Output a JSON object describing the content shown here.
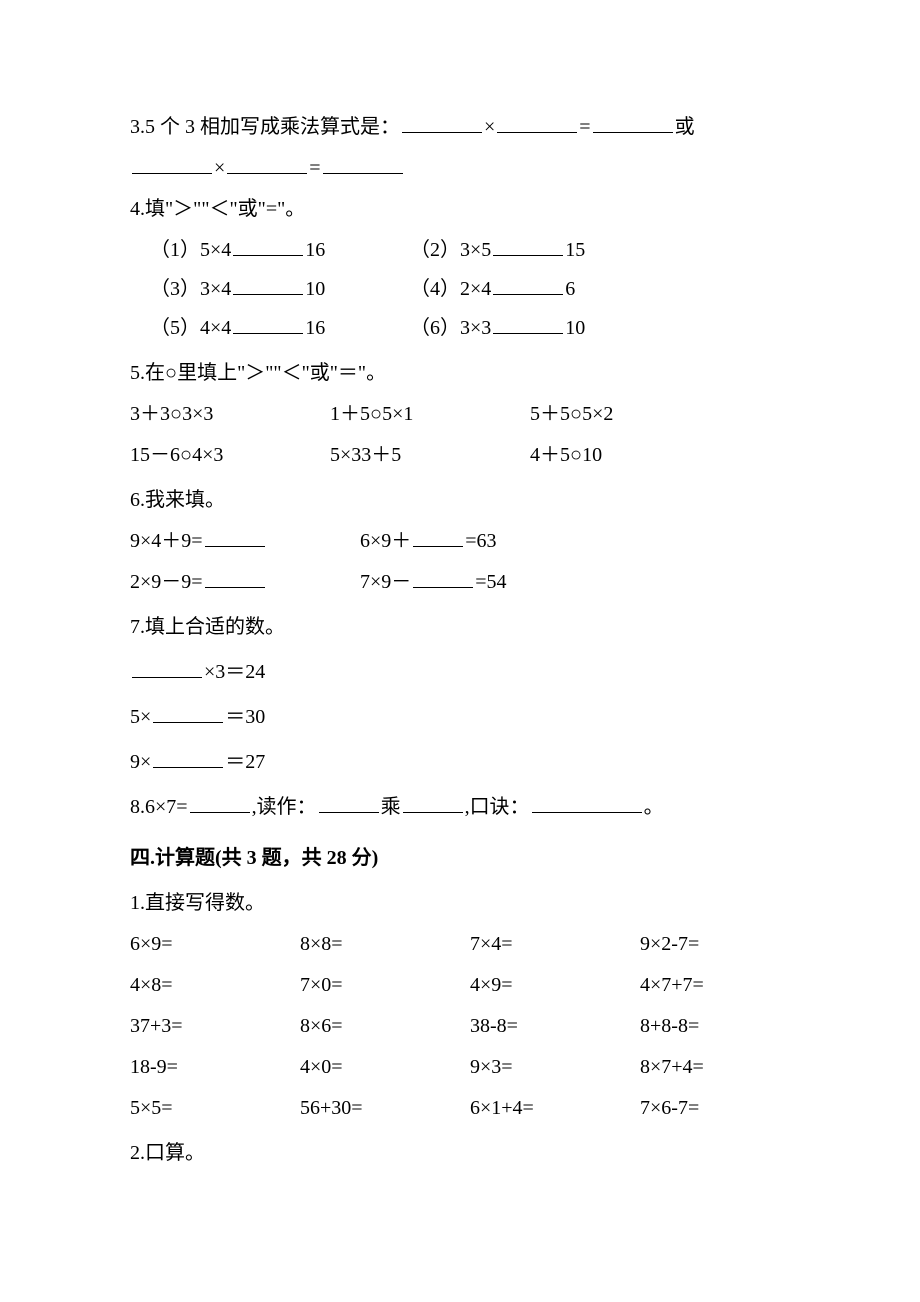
{
  "q3": {
    "prefix": "3.5 个 3 相加写成乘法算式是：",
    "mid1": "×",
    "mid2": "=",
    "tail": "或",
    "line2_mid1": "×",
    "line2_mid2": "="
  },
  "q4": {
    "title": "4.填\"＞\"\"＜\"或\"=\"。",
    "items": [
      {
        "label": "（1）5×4",
        "cmp_to": "16"
      },
      {
        "label": "（2）3×5",
        "cmp_to": "15"
      },
      {
        "label": "（3）3×4",
        "cmp_to": "10"
      },
      {
        "label": "（4）2×4",
        "cmp_to": "6"
      },
      {
        "label": "（5）4×4",
        "cmp_to": "16"
      },
      {
        "label": "（6）3×3",
        "cmp_to": "10"
      }
    ]
  },
  "q5": {
    "title": "5.在○里填上\"＞\"\"＜\"或\"＝\"。",
    "row1": [
      "3＋3○3×3",
      "1＋5○5×1",
      "5＋5○5×2"
    ],
    "row2": [
      "15－6○4×3",
      "5×33＋5",
      "4＋5○10"
    ]
  },
  "q6": {
    "title": "6.我来填。",
    "r1a": "9×4＋9=",
    "r1a_tail": "",
    "r1b": "6×9＋",
    "r1b_tail": "=63",
    "r2a": "2×9－9=",
    "r2a_tail": "",
    "r2b": "7×9－",
    "r2b_tail": "=54"
  },
  "q7": {
    "title": "7.填上合适的数。",
    "lines": [
      {
        "pre": "",
        "mid": "×3＝24"
      },
      {
        "pre": "5×",
        "mid": "＝30"
      },
      {
        "pre": "9×",
        "mid": "＝27"
      }
    ]
  },
  "q8": {
    "pre": "8.6×7=",
    "read_label": ",读作：",
    "times": "乘",
    "kj_label": ",口诀：",
    "end": "。"
  },
  "section4": {
    "title": "四.计算题(共 3 题，共 28 分)",
    "q1_title": "1.直接写得数。",
    "grid": [
      [
        "6×9=",
        "8×8=",
        "7×4=",
        "9×2-7="
      ],
      [
        "4×8=",
        "7×0=",
        "4×9=",
        "4×7+7="
      ],
      [
        "37+3=",
        "8×6=",
        "38-8=",
        "8+8-8="
      ],
      [
        "18-9=",
        "4×0=",
        "9×3=",
        "8×7+4="
      ],
      [
        "5×5=",
        "56+30=",
        "6×1+4=",
        "7×6-7="
      ]
    ],
    "q2_title": "2.口算。"
  }
}
